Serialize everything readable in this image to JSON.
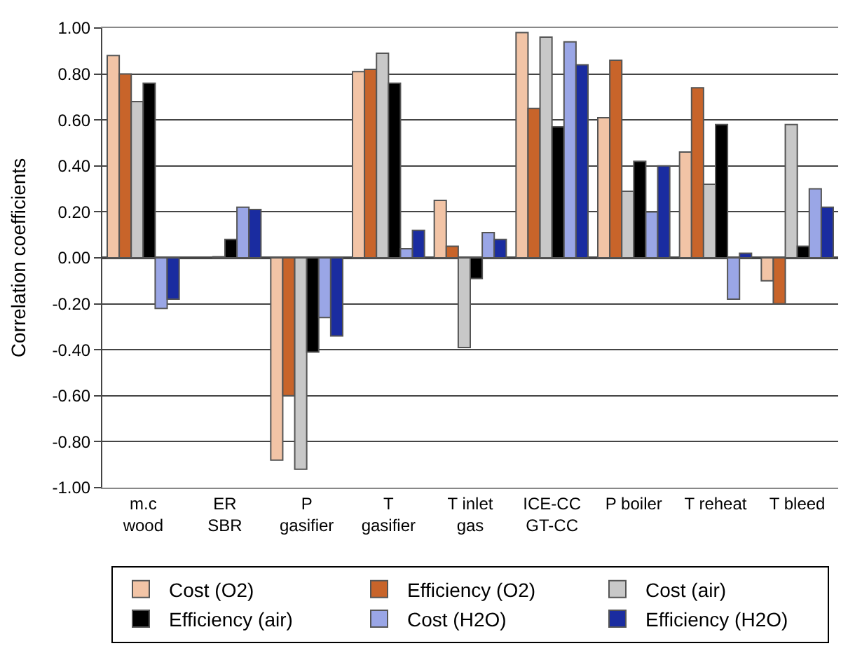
{
  "chart_data": {
    "type": "bar",
    "ylabel": "Correlation coefficients",
    "categories": [
      "m.c\nwood",
      "ER\nSBR",
      "P\ngasifier",
      "T\ngasifier",
      "T inlet\ngas",
      "ICE-CC\nGT-CC",
      "P boiler",
      "T reheat",
      "T bleed"
    ],
    "series": [
      {
        "name": "Cost (O2)",
        "color": "#f2c4a6",
        "values": [
          0.88,
          null,
          -0.88,
          0.81,
          0.25,
          0.98,
          0.61,
          0.46,
          -0.1
        ]
      },
      {
        "name": "Efficiency (O2)",
        "color": "#c8642a",
        "values": [
          0.8,
          null,
          -0.6,
          0.82,
          0.05,
          0.65,
          0.86,
          0.74,
          -0.2
        ]
      },
      {
        "name": "Cost (air)",
        "color": "#c8c8c8",
        "values": [
          0.68,
          0.005,
          -0.92,
          0.89,
          -0.39,
          0.96,
          0.29,
          0.32,
          0.58
        ]
      },
      {
        "name": "Efficiency (air)",
        "color": "#000000",
        "values": [
          0.76,
          0.08,
          -0.41,
          0.76,
          -0.09,
          0.57,
          0.42,
          0.58,
          0.05
        ]
      },
      {
        "name": "Cost (H2O)",
        "color": "#9aa6e6",
        "values": [
          -0.22,
          0.22,
          -0.26,
          0.04,
          0.11,
          0.94,
          0.2,
          -0.18,
          0.3
        ]
      },
      {
        "name": "Efficiency (H2O)",
        "color": "#1a2ca0",
        "values": [
          -0.18,
          0.21,
          -0.34,
          0.12,
          0.08,
          0.84,
          0.4,
          0.02,
          0.22
        ]
      }
    ],
    "ylim": [
      -1,
      1
    ],
    "yticks": [
      {
        "value": -1,
        "label": "-1.00"
      },
      {
        "value": -0.8,
        "label": "-0.80"
      },
      {
        "value": -0.6,
        "label": "-0.60"
      },
      {
        "value": -0.4,
        "label": "-0.40"
      },
      {
        "value": -0.2,
        "label": "-0.20"
      },
      {
        "value": 0,
        "label": "0.00"
      },
      {
        "value": 0.2,
        "label": "0.20"
      },
      {
        "value": 0.4,
        "label": "0.40"
      },
      {
        "value": 0.6,
        "label": "0.60"
      },
      {
        "value": 0.8,
        "label": "0.80"
      },
      {
        "value": 1,
        "label": "1.00"
      }
    ],
    "grid": "y",
    "legend": "bottom"
  }
}
